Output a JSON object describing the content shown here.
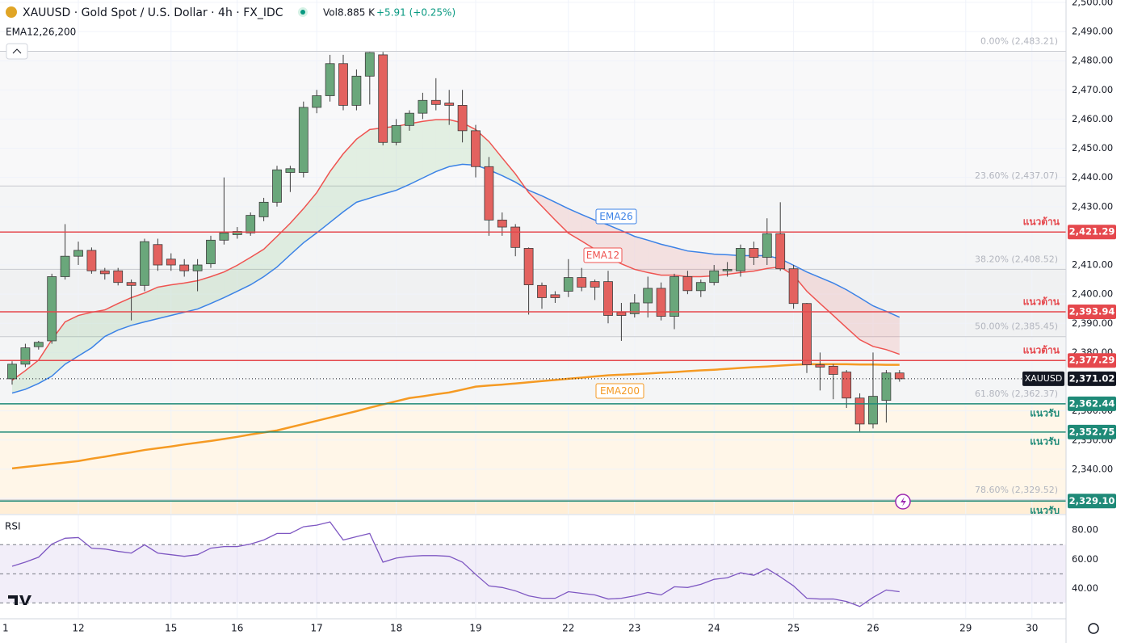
{
  "chart_data": {
    "type": "candlestick",
    "title": "XAUUSD · Gold Spot / U.S. Dollar · 4h · FX_IDC",
    "volume_label": "Vol",
    "volume": "8.885 K",
    "change": "+5.91 (+0.25%)",
    "indicator_label": "EMA12,26,200",
    "categories": [
      "1",
      null,
      null,
      null,
      null,
      null,
      "12",
      null,
      null,
      null,
      null,
      null,
      null,
      "15",
      null,
      null,
      null,
      null,
      "16",
      null,
      null,
      null,
      null,
      null,
      "17",
      null,
      null,
      null,
      null,
      null,
      "18",
      null,
      null,
      null,
      null,
      null,
      "19",
      null,
      null,
      null,
      null,
      null,
      null,
      "22",
      null,
      null,
      null,
      null,
      "23",
      null,
      null,
      null,
      null,
      null,
      "24",
      null,
      null,
      null,
      null,
      null,
      "25",
      null,
      null,
      null,
      null,
      null,
      "26",
      null,
      null,
      null,
      null,
      null,
      null,
      "29",
      null,
      null,
      null,
      null,
      "30"
    ],
    "up_color": "#6aa77b",
    "down_color": "#e3625f",
    "open": [
      null,
      2371,
      2376,
      2382,
      2384,
      2406,
      2413,
      2415,
      2408,
      2408,
      2404,
      2403,
      2417,
      2412,
      2410,
      2408,
      2410.4,
      2418.5,
      2420.4,
      2421,
      2426.5,
      2431.5,
      2441.7,
      2441.7,
      2464,
      2468,
      2479,
      2464.7,
      2474.7,
      2482,
      2452,
      2457.8,
      2462,
      2466.4,
      2465.5,
      2464.7,
      2456,
      2443.7,
      2425.4,
      2423,
      2415.7,
      2403,
      2399.8,
      2401,
      2405.7,
      2404.3,
      2404.3,
      2393.8,
      2393.3,
      2397,
      2402,
      2392.4,
      2406,
      2401.2,
      2404,
      2408,
      2408,
      2415.7,
      2412.6,
      2420.7,
      2408.7,
      2396.8,
      2375.8,
      2375.3,
      2373.3,
      2364.4,
      2355.5,
      2363.6,
      2373,
      null,
      null,
      null,
      null,
      null,
      null,
      null,
      null,
      null,
      null
    ],
    "high": [
      null,
      2377,
      2383,
      2384,
      2407,
      2424,
      2418,
      2416,
      2409,
      2409,
      2405,
      2419,
      2419,
      2414,
      2412,
      2412,
      2420,
      2440,
      2423,
      2428,
      2433,
      2444,
      2444,
      2466,
      2470,
      2482,
      2482,
      2477,
      2483,
      2483,
      2460,
      2463,
      2469,
      2474,
      2470,
      2470,
      2458,
      2447,
      2428,
      2424,
      2416,
      2404,
      2401,
      2412,
      2409,
      2405,
      2408,
      2397,
      2400,
      2406,
      2404,
      2407,
      2408,
      2405,
      2410,
      2411,
      2417,
      2418,
      2426,
      2431.5,
      2410,
      2397,
      2380,
      2376,
      2374,
      2366,
      2380,
      2374,
      2374,
      null,
      null,
      null,
      null,
      null,
      null,
      null,
      null,
      null,
      null
    ],
    "low": [
      null,
      2369,
      2375,
      2381,
      2383,
      2405,
      2410,
      2407,
      2405,
      2403,
      2391,
      2401,
      2408,
      2408,
      2406,
      2401,
      2409,
      2417,
      2419,
      2420,
      2425,
      2430,
      2435,
      2440,
      2462,
      2466,
      2463,
      2463,
      2465,
      2451,
      2451,
      2456,
      2460,
      2463,
      2458,
      2452,
      2440,
      2420,
      2420,
      2413,
      2393,
      2395,
      2397,
      2399,
      2401,
      2398,
      2390,
      2384,
      2392,
      2392,
      2391,
      2388,
      2400,
      2399,
      2403,
      2406,
      2406,
      2410,
      2410,
      2408,
      2395,
      2373,
      2367,
      2364,
      2361,
      2353,
      2354,
      2356,
      2370,
      null,
      null,
      null,
      null,
      null,
      null,
      null,
      null,
      null,
      null
    ],
    "close": [
      null,
      2376,
      2381.6,
      2383.5,
      2406,
      2413,
      2415,
      2408,
      2407,
      2404,
      2403,
      2418,
      2410,
      2410,
      2408,
      2410,
      2418.5,
      2421,
      2421.5,
      2427,
      2431.5,
      2442.6,
      2443,
      2464,
      2468,
      2479,
      2464.7,
      2474.7,
      2482.8,
      2452,
      2457.8,
      2462,
      2466.4,
      2465,
      2464.7,
      2456,
      2443.7,
      2425.4,
      2423,
      2416,
      2403.2,
      2398.8,
      2398.8,
      2405.7,
      2402.4,
      2402.4,
      2392.7,
      2392.7,
      2397,
      2402,
      2392.4,
      2406,
      2401.2,
      2404,
      2408,
      2408.5,
      2415.7,
      2412.6,
      2420.7,
      2408.7,
      2396.8,
      2375.8,
      2375,
      2372.5,
      2364.4,
      2355.5,
      2365,
      2373,
      2371,
      null,
      null,
      null,
      null,
      null,
      null,
      null,
      null,
      null,
      null
    ],
    "series": [
      {
        "name": "EMA12",
        "color": "#ef5350",
        "values": [
          null,
          2370.5,
          2373.8,
          2377.4,
          2384.4,
          2390.5,
          2392.7,
          2393.8,
          2394.6,
          2396.8,
          2398.8,
          2400.4,
          2402.4,
          2403.2,
          2403.8,
          2404.6,
          2406.0,
          2407.6,
          2409.9,
          2412.6,
          2415.4,
          2419.8,
          2424.3,
          2429.3,
          2434.8,
          2442.0,
          2448.1,
          2453.1,
          2456.4,
          2457.0,
          2457.5,
          2458.4,
          2459.2,
          2459.8,
          2459.8,
          2458.7,
          2456.4,
          2452.3,
          2446.7,
          2441.2,
          2434.8,
          2430.1,
          2425.4,
          2420.9,
          2418.2,
          2415.4,
          2412.6,
          2410.4,
          2408.5,
          2407.4,
          2406.5,
          2406.5,
          2406.0,
          2406.0,
          2406.3,
          2406.8,
          2407.4,
          2407.9,
          2408.8,
          2409.3,
          2406.5,
          2401.0,
          2396.8,
          2392.7,
          2388.5,
          2384.4,
          2382.1,
          2381.0,
          2379.4,
          null,
          null,
          null,
          null,
          null,
          null,
          null,
          null,
          null,
          null
        ]
      },
      {
        "name": "EMA26",
        "color": "#3b82e6",
        "values": [
          null,
          2366.1,
          2367.4,
          2369.4,
          2371.9,
          2376.0,
          2378.8,
          2381.6,
          2385.5,
          2387.7,
          2389.3,
          2390.5,
          2391.6,
          2392.7,
          2393.8,
          2394.9,
          2396.8,
          2398.8,
          2401.0,
          2403.2,
          2406.0,
          2409.3,
          2413.5,
          2417.6,
          2421.0,
          2424.6,
          2428.2,
          2431.5,
          2432.9,
          2434.3,
          2435.6,
          2437.6,
          2439.8,
          2442.0,
          2443.7,
          2444.5,
          2444.2,
          2442.6,
          2440.6,
          2438.4,
          2435.6,
          2433.7,
          2431.5,
          2429.3,
          2427.3,
          2425.4,
          2423.7,
          2421.8,
          2419.8,
          2418.5,
          2417.1,
          2416.0,
          2414.8,
          2414.3,
          2413.7,
          2413.5,
          2413.2,
          2413.2,
          2413.2,
          2412.1,
          2409.9,
          2407.6,
          2405.7,
          2403.8,
          2401.5,
          2398.8,
          2396.0,
          2394.1,
          2392.1,
          null,
          null,
          null,
          null,
          null,
          null,
          null,
          null,
          null,
          null
        ]
      },
      {
        "name": "EMA200",
        "color": "#f59a23",
        "values": [
          null,
          2340.3,
          2340.8,
          2341.3,
          2341.8,
          2342.3,
          2342.8,
          2343.6,
          2344.3,
          2345.1,
          2345.8,
          2346.6,
          2347.2,
          2347.8,
          2348.5,
          2349.1,
          2349.7,
          2350.4,
          2351.1,
          2351.9,
          2352.6,
          2353.3,
          2354.4,
          2355.5,
          2356.6,
          2357.7,
          2358.8,
          2359.9,
          2361.1,
          2362.2,
          2363.3,
          2364.4,
          2365.0,
          2365.7,
          2366.3,
          2367.3,
          2368.3,
          2368.7,
          2369.0,
          2369.4,
          2369.8,
          2370.2,
          2370.6,
          2371.0,
          2371.4,
          2371.8,
          2372.2,
          2372.4,
          2372.6,
          2372.8,
          2373.1,
          2373.3,
          2373.6,
          2373.9,
          2374.1,
          2374.4,
          2374.7,
          2375.0,
          2375.2,
          2375.5,
          2375.8,
          2376.0,
          2376.0,
          2376.0,
          2376.0,
          2375.9,
          2375.9,
          2375.8,
          2375.8,
          null,
          null,
          null,
          null,
          null,
          null,
          null,
          null,
          null,
          null
        ]
      }
    ],
    "ylim": [
      2324.75,
      2500.8
    ],
    "yticks": [
      {
        "value": 2500,
        "label": "2,500.00"
      },
      {
        "value": 2490,
        "label": "2,490.00"
      },
      {
        "value": 2480,
        "label": "2,480.00"
      },
      {
        "value": 2470,
        "label": "2,470.00"
      },
      {
        "value": 2460,
        "label": "2,460.00"
      },
      {
        "value": 2450,
        "label": "2,450.00"
      },
      {
        "value": 2440,
        "label": "2,440.00"
      },
      {
        "value": 2430,
        "label": "2,430.00"
      },
      {
        "value": 2410,
        "label": "2,410.00"
      },
      {
        "value": 2400,
        "label": "2,400.00"
      },
      {
        "value": 2390,
        "label": "2,390.00"
      },
      {
        "value": 2380,
        "label": "2,380.00"
      },
      {
        "value": 2360,
        "label": "2,360.00"
      },
      {
        "value": 2350,
        "label": "2,350.00"
      },
      {
        "value": 2340,
        "label": "2,340.00"
      },
      {
        "value": 2330,
        "label": "2,330.00"
      }
    ],
    "grid": true,
    "fib_levels": [
      {
        "value": 2483.21,
        "label": "0.00% (2,483.21)",
        "fill": "rgba(120,123,134,0.05)"
      },
      {
        "value": 2437.07,
        "label": "23.60% (2,437.07)",
        "fill": "rgba(120,123,134,0.08)"
      },
      {
        "value": 2408.52,
        "label": "38.20% (2,408.52)",
        "fill": "rgba(120,123,134,0.11)"
      },
      {
        "value": 2385.45,
        "label": "50.00% (2,385.45)",
        "fill": "rgba(120,123,134,0.08)"
      },
      {
        "value": 2362.37,
        "label": "61.80% (2,362.37)",
        "fill": "rgba(255,152,0,0.09)"
      },
      {
        "value": 2329.52,
        "label": "78.60% (2,329.52)",
        "fill": "rgba(255,152,0,0.16)"
      }
    ],
    "levels": [
      {
        "name": "แนวต้าน",
        "value": 2421.29,
        "label": "2,421.29",
        "color": "#e5484d"
      },
      {
        "name": "แนวต้าน",
        "value": 2393.94,
        "label": "2,393.94",
        "color": "#e5484d"
      },
      {
        "name": "แนวต้าน",
        "value": 2377.29,
        "label": "2,377.29",
        "color": "#e5484d"
      },
      {
        "name": "แนวรับ",
        "value": 2362.44,
        "label": "2,362.44",
        "color": "#1f8a78"
      },
      {
        "name": "แนวรับ",
        "value": 2352.75,
        "label": "2,352.75",
        "color": "#1f8a78"
      },
      {
        "name": "แนวรับ",
        "value": 2329.1,
        "label": "2,329.10",
        "color": "#1f8a78"
      }
    ],
    "last_price": {
      "symbol": "XAUUSD",
      "value": 2371.02,
      "label": "2,371.02"
    },
    "rsi": {
      "name": "RSI",
      "color": "#7e57c2",
      "values": [
        null,
        55.2,
        58,
        61.4,
        70.4,
        74.4,
        74.9,
        67.6,
        67,
        65.4,
        64.2,
        69.9,
        64.2,
        63.1,
        62,
        63.1,
        67.6,
        68.7,
        68.7,
        70.4,
        73.2,
        77.7,
        77.7,
        82.3,
        83.4,
        85.6,
        73.2,
        75.5,
        77.7,
        58,
        60.8,
        62,
        62.5,
        62.5,
        62,
        58,
        49.6,
        41.7,
        40.6,
        38.3,
        34.9,
        33.2,
        33.2,
        37.7,
        36.6,
        35.5,
        32.7,
        33.2,
        34.9,
        37.2,
        35.5,
        41.1,
        40.6,
        42.8,
        46.2,
        47.3,
        50.7,
        49,
        53.5,
        47.9,
        41.7,
        33.2,
        32.7,
        32.7,
        31,
        27.6,
        33.8,
        38.9,
        37.7,
        null,
        null,
        null,
        null,
        null,
        null,
        null,
        null,
        null,
        null
      ],
      "ylim": [
        19.7,
        90.1
      ],
      "yticks": [
        {
          "value": 80,
          "label": "80.00"
        },
        {
          "value": 60,
          "label": "60.00"
        },
        {
          "value": 40,
          "label": "40.00"
        }
      ],
      "levels": [
        70,
        50,
        30
      ]
    }
  }
}
